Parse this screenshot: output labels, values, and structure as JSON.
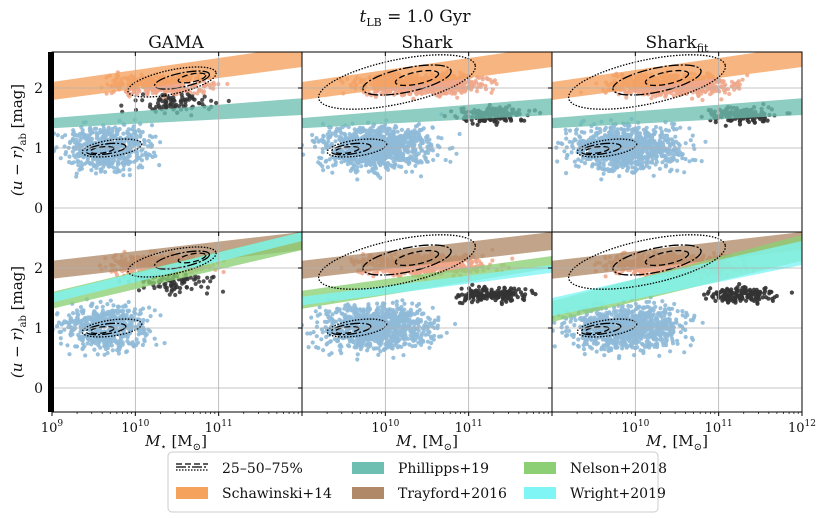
{
  "figure": {
    "suptitle": "t",
    "suptitle_sub": "LB",
    "suptitle_rest": " = 1.0 Gyr"
  },
  "chart_data": {
    "type": "scatter",
    "description_type": "hexbin scatter with contours and shaded band fits, 2x3 panel grid",
    "columns": [
      {
        "title": "GAMA",
        "title_sub": ""
      },
      {
        "title": "Shark",
        "title_sub": ""
      },
      {
        "title": "Shark",
        "title_sub": "fit"
      }
    ],
    "xlabel": "M",
    "xlabel_sub": "⋆",
    "xlabel_unit": " [M",
    "xlabel_unit_sub": "⊙",
    "xlabel_close": "]",
    "ylabel": "(u − r)",
    "ylabel_sub": "ab",
    "ylabel_unit": " [mag]",
    "xscale": "log",
    "xlim": [
      1000000000.0,
      1000000000000.0
    ],
    "ylim": [
      -0.4,
      2.6
    ],
    "xticks": [
      {
        "value": 9,
        "base": "10",
        "exp": "9"
      },
      {
        "value": 10,
        "base": "10",
        "exp": "10"
      },
      {
        "value": 11,
        "base": "10",
        "exp": "11"
      },
      {
        "value": 12,
        "base": "10",
        "exp": "12"
      }
    ],
    "yticks": [
      "0",
      "1",
      "2"
    ],
    "ytick_values": [
      0,
      1,
      2
    ],
    "bands": {
      "top": [
        [
          {
            "model": "schawinski",
            "lo": [
              1.8,
              2.35
            ],
            "hi": [
              2.1,
              2.7
            ]
          },
          {
            "model": "phillipps",
            "lo": [
              1.33,
              1.55
            ],
            "hi": [
              1.5,
              1.83
            ]
          }
        ],
        [
          {
            "model": "schawinski",
            "lo": [
              1.8,
              2.35
            ],
            "hi": [
              2.1,
              2.7
            ]
          },
          {
            "model": "phillipps",
            "lo": [
              1.33,
              1.55
            ],
            "hi": [
              1.5,
              1.83
            ]
          }
        ],
        [
          {
            "model": "schawinski",
            "lo": [
              1.8,
              2.35
            ],
            "hi": [
              2.1,
              2.7
            ]
          },
          {
            "model": "phillipps",
            "lo": [
              1.33,
              1.55
            ],
            "hi": [
              1.5,
              1.83
            ]
          }
        ]
      ],
      "bottom": [
        [
          {
            "model": "trayford",
            "lo": [
              1.82,
              2.3
            ],
            "hi": [
              2.12,
              2.6
            ]
          },
          {
            "model": "nelson",
            "lo": [
              1.32,
              2.3
            ],
            "hi": [
              1.6,
              2.6
            ]
          },
          {
            "model": "wright",
            "lo": [
              1.42,
              2.45
            ],
            "hi": [
              1.58,
              2.6
            ]
          }
        ],
        [
          {
            "model": "trayford",
            "lo": [
              1.82,
              2.3
            ],
            "hi": [
              2.12,
              2.6
            ]
          },
          {
            "model": "nelson",
            "lo": [
              1.32,
              2.0
            ],
            "hi": [
              1.62,
              2.2
            ]
          },
          {
            "model": "wright",
            "lo": [
              1.38,
              1.92
            ],
            "hi": [
              1.52,
              2.05
            ]
          }
        ],
        [
          {
            "model": "trayford",
            "lo": [
              1.82,
              2.3
            ],
            "hi": [
              2.12,
              2.6
            ]
          },
          {
            "model": "nelson",
            "lo": [
              1.1,
              2.12
            ],
            "hi": [
              1.45,
              2.55
            ]
          },
          {
            "model": "wright",
            "lo": [
              1.2,
              2.05
            ],
            "hi": [
              1.5,
              2.45
            ]
          }
        ]
      ]
    },
    "legend": {
      "placement": "bottom-center",
      "entries": [
        {
          "label": "25–50–75%",
          "style": "contour",
          "color": "#000000"
        },
        {
          "label": "Schawinski+14",
          "style": "band",
          "color": "#f5a25d"
        },
        {
          "label": "Phillipps+19",
          "style": "band",
          "color": "#6dbfb1"
        },
        {
          "label": "Trayford+2016",
          "style": "band",
          "color": "#b08a68"
        },
        {
          "label": "Nelson+2018",
          "style": "band",
          "color": "#8ccf74"
        },
        {
          "label": "Wright+2019",
          "style": "band",
          "color": "#7ff5f5"
        }
      ]
    },
    "colors": {
      "blue_population": "#8fbad8",
      "red_population": "#f0a789",
      "dense_points": "#333333"
    }
  }
}
